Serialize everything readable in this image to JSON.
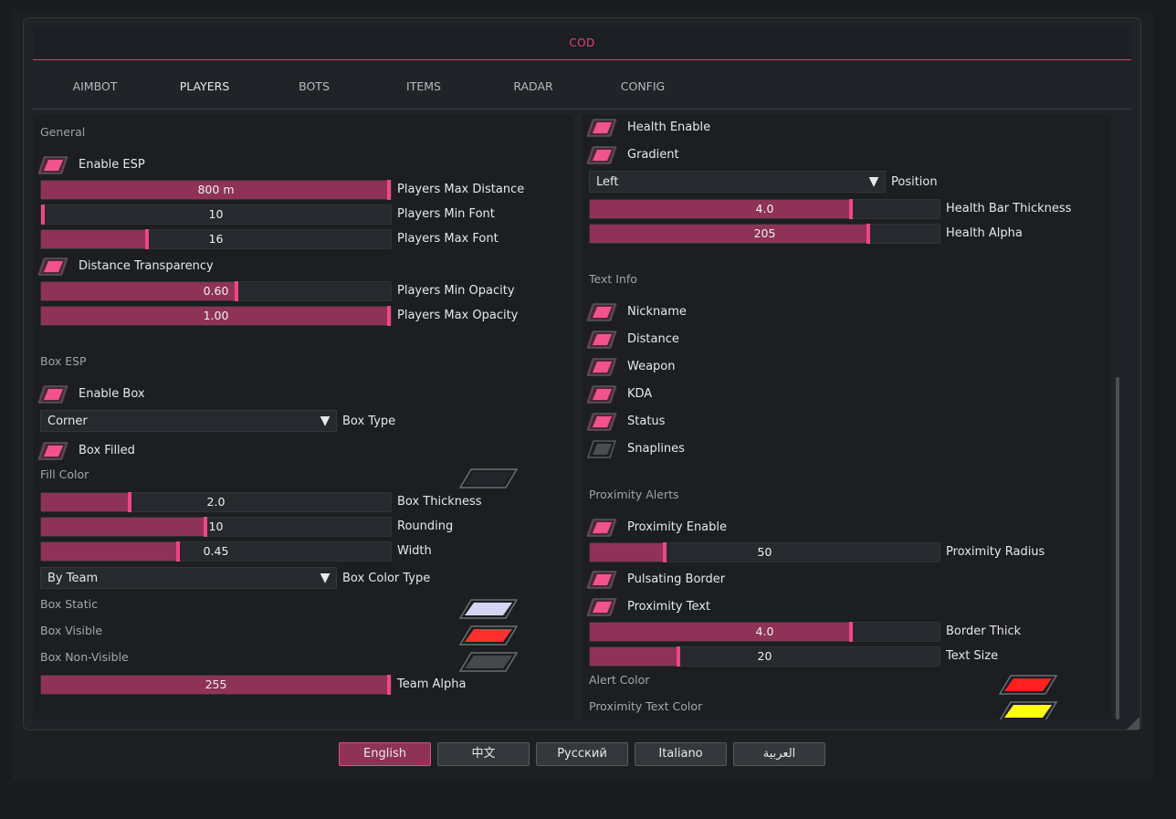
{
  "title": "COD",
  "tabs": [
    "AIMBOT",
    "PLAYERS",
    "BOTS",
    "ITEMS",
    "RADAR",
    "CONFIG"
  ],
  "active_tab": "PLAYERS",
  "colors": {
    "accent": "#f04585",
    "fill": "#8e3257",
    "panel": "#1c1e22"
  },
  "left": {
    "general": {
      "header": "General",
      "enable_esp": {
        "label": "Enable ESP",
        "checked": true
      },
      "max_distance": {
        "label": "Players Max Distance",
        "value": "800 m",
        "fraction": 1.0
      },
      "min_font": {
        "label": "Players Min Font",
        "value": "10",
        "fraction": 0.0
      },
      "max_font": {
        "label": "Players Max Font",
        "value": "16",
        "fraction": 0.3
      },
      "distance_transparency": {
        "label": "Distance Transparency",
        "checked": true
      },
      "min_opacity": {
        "label": "Players Min Opacity",
        "value": "0.60",
        "fraction": 0.56
      },
      "max_opacity": {
        "label": "Players Max Opacity",
        "value": "1.00",
        "fraction": 1.0
      }
    },
    "box": {
      "header": "Box ESP",
      "enable_box": {
        "label": "Enable Box",
        "checked": true
      },
      "box_type": {
        "label": "Box Type",
        "value": "Corner"
      },
      "box_filled": {
        "label": "Box Filled",
        "checked": true
      },
      "fill_color": {
        "label": "Fill Color",
        "color": "#23262a"
      },
      "box_thickness": {
        "label": "Box Thickness",
        "value": "2.0",
        "fraction": 0.25
      },
      "rounding": {
        "label": "Rounding",
        "value": "10",
        "fraction": 0.47
      },
      "width": {
        "label": "Width",
        "value": "0.45",
        "fraction": 0.39
      },
      "color_type": {
        "label": "Box Color Type",
        "value": "By Team"
      },
      "static": {
        "label": "Box Static",
        "color": "#d6d4f2"
      },
      "visible": {
        "label": "Box Visible",
        "color": "#ff3030"
      },
      "non_visible": {
        "label": "Box Non-Visible",
        "color": "#46484c"
      },
      "team_alpha": {
        "label": "Team Alpha",
        "value": "255",
        "fraction": 1.0
      }
    }
  },
  "right": {
    "health": {
      "enable": {
        "label": "Health Enable",
        "checked": true
      },
      "gradient": {
        "label": "Gradient",
        "checked": true
      },
      "position": {
        "label": "Position",
        "value": "Left"
      },
      "thickness": {
        "label": "Health Bar Thickness",
        "value": "4.0",
        "fraction": 0.75
      },
      "alpha": {
        "label": "Health Alpha",
        "value": "205",
        "fraction": 0.8
      }
    },
    "text_info": {
      "header": "Text Info",
      "items": [
        {
          "label": "Nickname",
          "checked": true
        },
        {
          "label": "Distance",
          "checked": true
        },
        {
          "label": "Weapon",
          "checked": true
        },
        {
          "label": "KDA",
          "checked": true
        },
        {
          "label": "Status",
          "checked": true
        },
        {
          "label": "Snaplines",
          "checked": false
        }
      ]
    },
    "proximity": {
      "header": "Proximity Alerts",
      "enable": {
        "label": "Proximity Enable",
        "checked": true
      },
      "radius": {
        "label": "Proximity Radius",
        "value": "50",
        "fraction": 0.21
      },
      "pulsating": {
        "label": "Pulsating Border",
        "checked": true
      },
      "text": {
        "label": "Proximity Text",
        "checked": true
      },
      "border_thick": {
        "label": "Border Thick",
        "value": "4.0",
        "fraction": 0.75
      },
      "text_size": {
        "label": "Text Size",
        "value": "20",
        "fraction": 0.25
      },
      "alert_color": {
        "label": "Alert Color",
        "color": "#ff2020"
      },
      "text_color": {
        "label": "Proximity Text Color",
        "color": "#ffff10"
      }
    }
  },
  "languages": [
    "English",
    "中文",
    "Русский",
    "Italiano",
    "العربية"
  ],
  "active_language": "English"
}
